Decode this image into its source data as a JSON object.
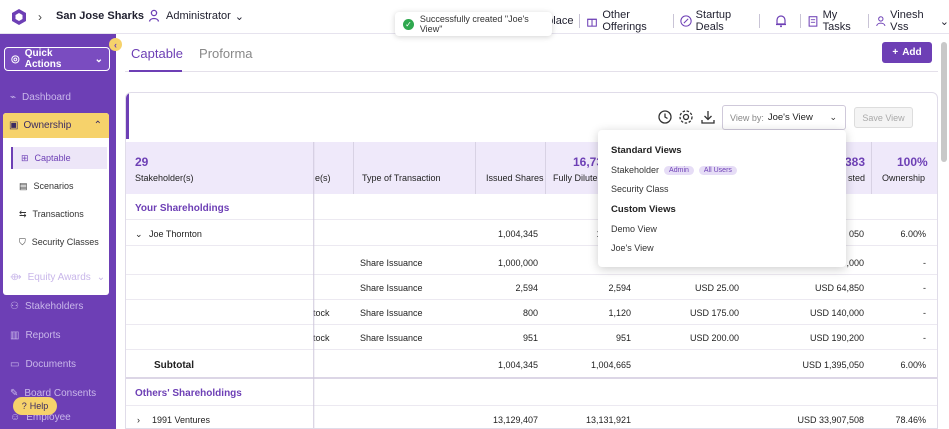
{
  "topbar": {
    "company": "San Jose Sharks",
    "role": "Administrator",
    "nav": [
      {
        "label": "etplace",
        "icon": "marketplace-icon"
      },
      {
        "label": "Other Offerings",
        "icon": "gift-icon"
      },
      {
        "label": "Startup Deals",
        "icon": "percent-icon"
      },
      {
        "label": "",
        "icon": "bell-icon"
      },
      {
        "label": "My Tasks",
        "icon": "tasks-icon"
      },
      {
        "label": "Vinesh Vss",
        "icon": "user-icon"
      }
    ]
  },
  "toast": {
    "message": "Successfully created \"Joe's View\""
  },
  "sidebar": {
    "quick_actions": "Quick Actions",
    "items": {
      "dashboard": "Dashboard",
      "ownership": "Ownership",
      "equity_awards": "Equity Awards",
      "stakeholders": "Stakeholders",
      "reports": "Reports",
      "documents": "Documents",
      "board_consents": "Board Consents",
      "employee": "Employee"
    },
    "sub_items": {
      "captable": "Captable",
      "scenarios": "Scenarios",
      "transactions": "Transactions",
      "security_classes": "Security Classes"
    },
    "help": "Help"
  },
  "tabs": {
    "captable": "Captable",
    "proforma": "Proforma"
  },
  "add_button": "Add",
  "toolbar": {
    "view_by_label": "View by:",
    "view_by_value": "Joe's View",
    "save_view": "Save View"
  },
  "table": {
    "summary": {
      "stakeholders_count": "29",
      "fully_diluted_partial": "16,73",
      "invested_partial": "383",
      "ownership_total": "100%"
    },
    "headers": {
      "stakeholders": "Stakeholder(s)",
      "security_partial": "e(s)",
      "type": "Type of Transaction",
      "issued": "Issued Shares",
      "fully_diluted": "Fully Dilute",
      "invested_partial": "sted",
      "ownership": "Ownership"
    },
    "section_yours": "Your Shareholdings",
    "joe": {
      "name": "Joe Thornton",
      "issued": "1,004,345",
      "fd_partial": "1,",
      "invested_partial": "050",
      "ownership": "6.00%"
    },
    "rows": [
      {
        "security": "",
        "type": "Share Issuance",
        "issued": "1,000,000",
        "fd": "",
        "price": "",
        "invested": ",000",
        "ownership": "-"
      },
      {
        "security": "",
        "type": "Share Issuance",
        "issued": "2,594",
        "fd": "2,594",
        "price": "USD 25.00",
        "invested": "USD 64,850",
        "ownership": "-"
      },
      {
        "security": "tock",
        "type": "Share Issuance",
        "issued": "800",
        "fd": "1,120",
        "price": "USD 175.00",
        "invested": "USD 140,000",
        "ownership": "-"
      },
      {
        "security": "tock",
        "type": "Share Issuance",
        "issued": "951",
        "fd": "951",
        "price": "USD 200.00",
        "invested": "USD 190,200",
        "ownership": "-"
      }
    ],
    "subtotal": {
      "label": "Subtotal",
      "issued": "1,004,345",
      "fd": "1,004,665",
      "invested": "USD 1,395,050",
      "ownership": "6.00%"
    },
    "section_others": "Others' Shareholdings",
    "ventures": {
      "name": "1991 Ventures",
      "issued": "13,129,407",
      "fd": "13,131,921",
      "invested": "USD 33,907,508",
      "ownership": "78.46%"
    }
  },
  "dropdown": {
    "standard_heading": "Standard Views",
    "stakeholder": "Stakeholder",
    "pill_admin": "Admin",
    "pill_all": "All Users",
    "security_class": "Security Class",
    "custom_heading": "Custom Views",
    "demo_view": "Demo View",
    "joes_view": "Joe's View"
  },
  "colors": {
    "primary": "#6d3fb5",
    "accent": "#f6d26b",
    "success": "#2fa84f"
  }
}
